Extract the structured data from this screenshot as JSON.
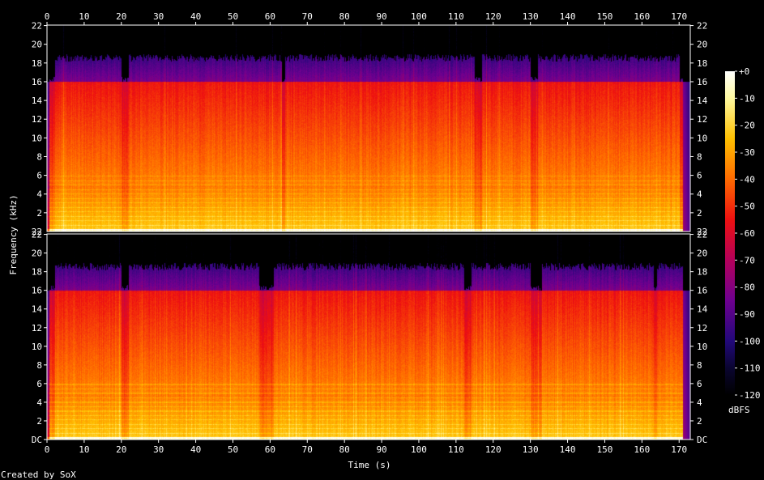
{
  "chart_data": {
    "type": "heatmap",
    "title": "",
    "xlabel": "Time (s)",
    "ylabel": "Frequency (kHz)",
    "footer": "Created by SoX",
    "xlim": [
      0,
      173
    ],
    "ylim_khz": [
      0,
      22.05
    ],
    "x_ticks": [
      0,
      10,
      20,
      30,
      40,
      50,
      60,
      70,
      80,
      90,
      100,
      110,
      120,
      130,
      140,
      150,
      160,
      170
    ],
    "y_ticks": [
      {
        "v": 0,
        "label": "DC"
      },
      {
        "v": 2,
        "label": "2"
      },
      {
        "v": 4,
        "label": "4"
      },
      {
        "v": 6,
        "label": "6"
      },
      {
        "v": 8,
        "label": "8"
      },
      {
        "v": 10,
        "label": "10"
      },
      {
        "v": 12,
        "label": "12"
      },
      {
        "v": 14,
        "label": "14"
      },
      {
        "v": 16,
        "label": "16"
      },
      {
        "v": 18,
        "label": "18"
      },
      {
        "v": 20,
        "label": "20"
      },
      {
        "v": 22,
        "label": "22"
      }
    ],
    "channels": [
      {
        "name": "channel 1",
        "audio_end_s": 171,
        "cutoff_khz": 16,
        "peak_khz": 19,
        "dip_segments_s": [
          [
            0,
            2
          ],
          [
            20,
            22
          ],
          [
            63,
            64
          ],
          [
            115,
            117
          ],
          [
            130,
            132
          ],
          [
            170,
            171
          ]
        ]
      },
      {
        "name": "channel 2",
        "audio_end_s": 171,
        "cutoff_khz": 16,
        "peak_khz": 19,
        "dip_segments_s": [
          [
            0,
            2
          ],
          [
            20,
            22
          ],
          [
            57,
            61
          ],
          [
            112,
            114
          ],
          [
            130,
            133
          ],
          [
            163,
            164
          ]
        ]
      }
    ],
    "colorbar": {
      "unit": "dBFS",
      "ticks": [
        "+0",
        "-10",
        "-20",
        "-30",
        "-40",
        "-50",
        "-60",
        "-70",
        "-80",
        "-90",
        "-100",
        "-110",
        "-120"
      ],
      "range_db": [
        -120,
        0
      ],
      "stops": [
        {
          "db": 0,
          "color": "#ffffff"
        },
        {
          "db": -10,
          "color": "#fff9a0"
        },
        {
          "db": -25,
          "color": "#ffc000"
        },
        {
          "db": -40,
          "color": "#ff6a00"
        },
        {
          "db": -55,
          "color": "#ee1010"
        },
        {
          "db": -70,
          "color": "#b4005a"
        },
        {
          "db": -85,
          "color": "#6e0090"
        },
        {
          "db": -100,
          "color": "#22087a"
        },
        {
          "db": -110,
          "color": "#0a0530"
        },
        {
          "db": -120,
          "color": "#000000"
        }
      ]
    }
  }
}
